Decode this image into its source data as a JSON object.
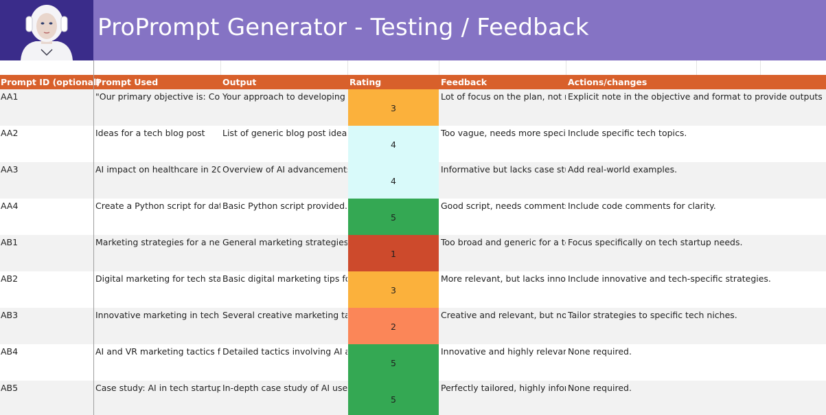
{
  "title": "ProPrompt Generator - Testing / Feedback",
  "colors": {
    "banner": "#8573c4",
    "header": "#d8602b",
    "rating_1": "#cd4a2c",
    "rating_2": "#fb8658",
    "rating_3": "#fbb13c",
    "rating_4": "#d9fafa",
    "rating_5": "#34a853"
  },
  "columns": [
    "Prompt ID (optional)",
    "Prompt Used",
    "Output",
    "Rating",
    "Feedback",
    "Actions/changes"
  ],
  "rows": [
    {
      "id": "AA1",
      "prompt": "\"Our primary objective is: Comp",
      "output": "Your approach to developing a c",
      "rating": "3",
      "feedback": "Lot of focus on the plan, not muc",
      "actions": "Explicit note in the objective and format to provide outputs"
    },
    {
      "id": "AA2",
      "prompt": "Ideas for a tech blog post",
      "output": "List of generic blog post ideas.",
      "rating": "4",
      "feedback": "Too vague, needs more specific",
      "actions": "Include specific tech topics."
    },
    {
      "id": "AA3",
      "prompt": "AI impact on healthcare in 2024",
      "output": "Overview of AI advancements in",
      "rating": "4",
      "feedback": "Informative but lacks case studi",
      "actions": "Add real-world examples."
    },
    {
      "id": "AA4",
      "prompt": "Create a Python script for data",
      "output": "Basic Python script provided.",
      "rating": "5",
      "feedback": "Good script, needs comments.",
      "actions": "Include code comments for clarity."
    },
    {
      "id": "AB1",
      "prompt": "Marketing strategies for a new",
      "output": "General marketing strategies li",
      "rating": "1",
      "feedback": "Too broad and generic for a tec",
      "actions": "Focus specifically on tech startup needs."
    },
    {
      "id": "AB2",
      "prompt": "Digital marketing for tech start",
      "output": "Basic digital marketing tips for",
      "rating": "3",
      "feedback": "More relevant, but lacks innova",
      "actions": "Include innovative and tech-specific strategies."
    },
    {
      "id": "AB3",
      "prompt": "Innovative marketing in tech inc",
      "output": "Several creative marketing tact",
      "rating": "2",
      "feedback": "Creative and relevant, but not t",
      "actions": "Tailor strategies to specific tech niches."
    },
    {
      "id": "AB4",
      "prompt": "AI and VR marketing tactics for",
      "output": "Detailed tactics involving AI an",
      "rating": "5",
      "feedback": "Innovative and highly relevant t",
      "actions": "None required."
    },
    {
      "id": "AB5",
      "prompt": "Case study: AI in tech startup m",
      "output": "In-depth case study of AI use in",
      "rating": "5",
      "feedback": "Perfectly tailored, highly inform",
      "actions": "None required."
    }
  ]
}
